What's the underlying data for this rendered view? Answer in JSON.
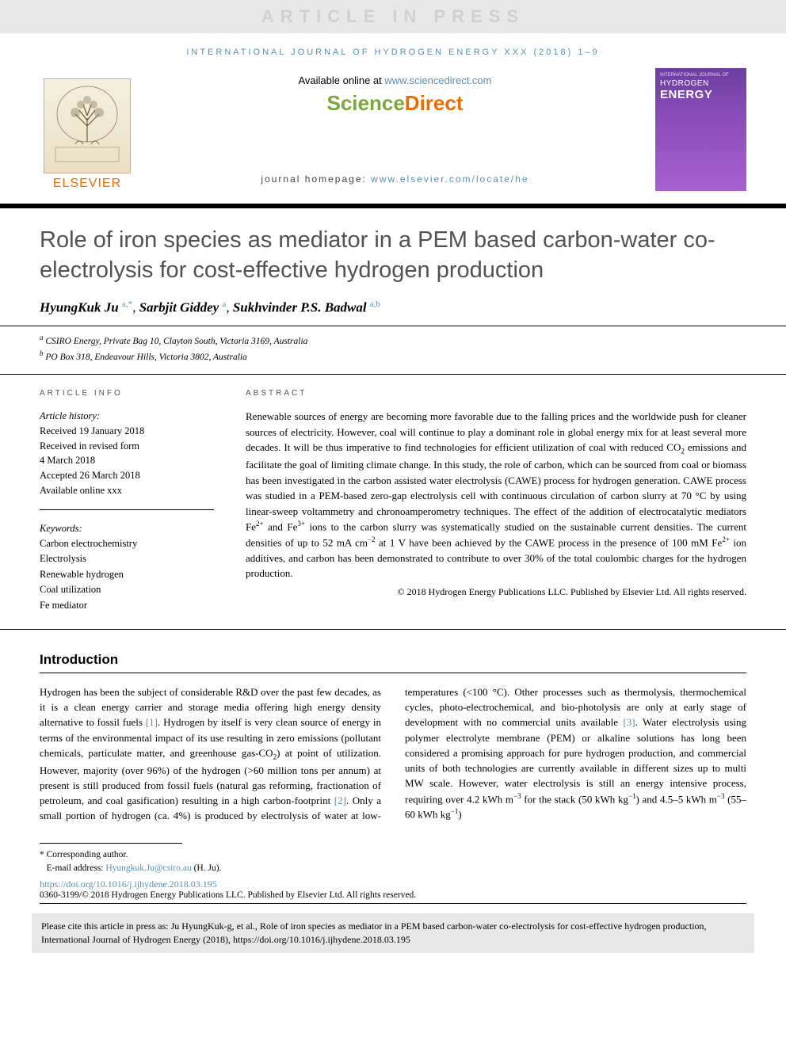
{
  "banner": {
    "text": "ARTICLE IN PRESS"
  },
  "journal_ref": "INTERNATIONAL JOURNAL OF HYDROGEN ENERGY XXX (2018) 1–9",
  "header": {
    "available_prefix": "Available online at ",
    "available_link": "www.sciencedirect.com",
    "sd_sci": "Science",
    "sd_dir": "Direct",
    "homepage_prefix": "journal homepage: ",
    "homepage_link": "www.elsevier.com/locate/he",
    "elsevier": "ELSEVIER",
    "cover": {
      "top": "INTERNATIONAL JOURNAL OF",
      "line1": "HYDROGEN",
      "line2": "ENERGY"
    }
  },
  "title": "Role of iron species as mediator in a PEM based carbon-water co-electrolysis for cost-effective hydrogen production",
  "authors": [
    {
      "name": "HyungKuk Ju",
      "sup": "a,*"
    },
    {
      "name": "Sarbjit Giddey",
      "sup": "a"
    },
    {
      "name": "Sukhvinder P.S. Badwal",
      "sup": "a,b"
    }
  ],
  "affiliations": [
    {
      "sup": "a",
      "text": "CSIRO Energy, Private Bag 10, Clayton South, Victoria 3169, Australia"
    },
    {
      "sup": "b",
      "text": "PO Box 318, Endeavour Hills, Victoria 3802, Australia"
    }
  ],
  "info": {
    "head": "ARTICLE INFO",
    "history_label": "Article history:",
    "history": [
      "Received 19 January 2018",
      "Received in revised form",
      "4 March 2018",
      "Accepted 26 March 2018",
      "Available online xxx"
    ],
    "keywords_label": "Keywords:",
    "keywords": [
      "Carbon electrochemistry",
      "Electrolysis",
      "Renewable hydrogen",
      "Coal utilization",
      "Fe mediator"
    ]
  },
  "abstract": {
    "head": "ABSTRACT",
    "text_html": "Renewable sources of energy are becoming more favorable due to the falling prices and the worldwide push for cleaner sources of electricity. However, coal will continue to play a dominant role in global energy mix for at least several more decades. It will be thus imperative to find technologies for efficient utilization of coal with reduced CO<span class='sub'>2</span> emissions and facilitate the goal of limiting climate change. In this study, the role of carbon, which can be sourced from coal or biomass has been investigated in the carbon assisted water electrolysis (CAWE) process for hydrogen generation. CAWE process was studied in a PEM-based zero-gap electrolysis cell with continuous circulation of carbon slurry at 70 °C by using linear-sweep voltammetry and chronoamperometry techniques. The effect of the addition of electrocatalytic mediators Fe<span class='sup'>2+</span> and Fe<span class='sup'>3+</span> ions to the carbon slurry was systematically studied on the sustainable current densities. The current densities of up to 52 mA cm<span class='sup'>−2</span> at 1 V have been achieved by the CAWE process in the presence of 100 mM Fe<span class='sup'>2+</span> ion additives, and carbon has been demonstrated to contribute to over 30% of the total coulombic charges for the hydrogen production.",
    "copyright": "© 2018 Hydrogen Energy Publications LLC. Published by Elsevier Ltd. All rights reserved."
  },
  "introduction": {
    "head": "Introduction",
    "col1_before_heading_drop": "Hydrogen has been the subject of considerable R&D over the past few decades, as it is a clean energy carrier and storage media offering high energy density alternative to fossil fuels <span class='ref'>[1]</span>. Hydrogen by itself is very clean source of energy in terms of the environmental impact of its use resulting in zero emissions (pollutant chemicals, particulate matter, and greenhouse gas-CO<span class='sub'>2</span>) at point of utilization. However, majority (over 96%) of the hydrogen (>60 million tons per annum) at present is still produced from fossil fuels (natural gas reforming, fractionation of petroleum, and coal gasification) resulting in a high carbon-",
    "col2_continued": "footprint <span class='ref'>[2]</span>. Only a small portion of hydrogen (ca. 4%) is produced by electrolysis of water at low-temperatures (<100 °C). Other processes such as thermolysis, thermochemical cycles, photo-electrochemical, and bio-photolysis are only at early stage of development with no commercial units available <span class='ref'>[3]</span>. Water electrolysis using polymer electrolyte membrane (PEM) or alkaline solutions has long been considered a promising approach for pure hydrogen production, and commercial units of both technologies are currently available in different sizes up to multi MW scale. However, water electrolysis is still an energy intensive process, requiring over 4.2 kWh m<span class='sup'>−3</span> for the stack (50 kWh kg<span class='sup'>−1</span>) and 4.5–5 kWh m<span class='sup'>−3</span> (55–60 kWh kg<span class='sup'>−1</span>)"
  },
  "footer": {
    "corresponding": "* Corresponding author.",
    "email_label": "E-mail address: ",
    "email": "Hyungkuk.Ju@csiro.au",
    "email_suffix": " (H. Ju).",
    "doi": "https://doi.org/10.1016/j.ijhydene.2018.03.195",
    "issn": "0360-3199/© 2018 Hydrogen Energy Publications LLC. Published by Elsevier Ltd. All rights reserved."
  },
  "citebox": "Please cite this article in press as: Ju HyungKuk-g, et al., Role of iron species as mediator in a PEM based carbon-water co-electrolysis for cost-effective hydrogen production, International Journal of Hydrogen Energy (2018), https://doi.org/10.1016/j.ijhydene.2018.03.195",
  "colors": {
    "link": "#5a8fb5",
    "orange": "#ed6c02",
    "green": "#7ba83d",
    "banner_bg": "#e8e8e8",
    "banner_fg": "#d0d0d0",
    "cover_grad_top": "#6b3fa0",
    "cover_grad_bot": "#a860d0"
  }
}
